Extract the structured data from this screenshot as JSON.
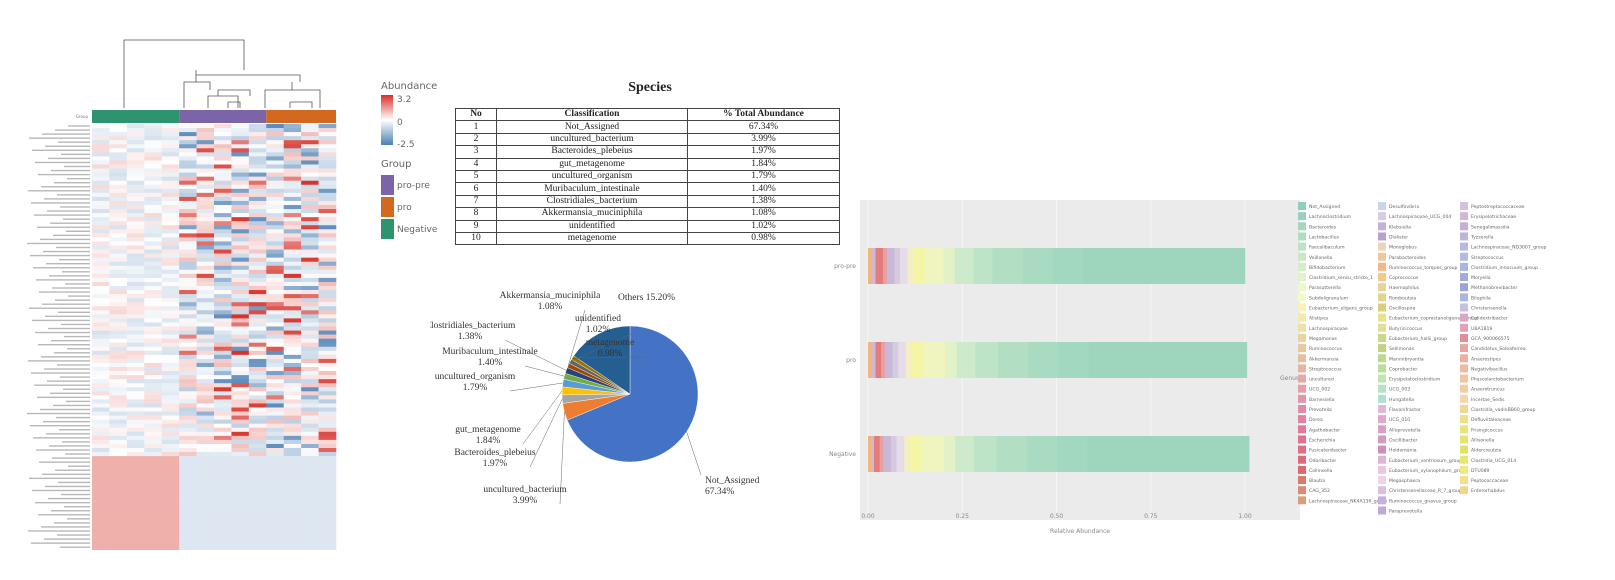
{
  "chart_data": [
    {
      "type": "heatmap",
      "legend": {
        "abundance_title": "Abundance",
        "ticks": [
          "3.2",
          "0",
          "-2.5"
        ],
        "group_title": "Group",
        "groups": [
          {
            "name": "pro-pre",
            "color": "#7b64a8"
          },
          {
            "name": "pro",
            "color": "#d2691e"
          },
          {
            "name": "Negative",
            "color": "#2e9470"
          }
        ]
      },
      "group_row_label": "Group",
      "colors": {
        "high": "#d73027",
        "mid": "#ffffff",
        "low": "#4a7fb5"
      }
    },
    {
      "type": "table",
      "title": "Species",
      "columns": [
        "No",
        "Classification",
        "% Total Abundance"
      ],
      "rows": [
        [
          "1",
          "Not_Assigned",
          "67.34%"
        ],
        [
          "2",
          "uncultured_bacterium",
          "3.99%"
        ],
        [
          "3",
          "Bacteroides_plebeius",
          "1.97%"
        ],
        [
          "4",
          "gut_metagenome",
          "1.84%"
        ],
        [
          "5",
          "uncultured_organism",
          "1.79%"
        ],
        [
          "6",
          "Muribaculum_intestinale",
          "1.40%"
        ],
        [
          "7",
          "Clostridiales_bacterium",
          "1.38%"
        ],
        [
          "8",
          "Akkermansia_muciniphila",
          "1.08%"
        ],
        [
          "9",
          "unidentified",
          "1.02%"
        ],
        [
          "10",
          "metagenome",
          "0.98%"
        ]
      ]
    },
    {
      "type": "pie",
      "slices": [
        {
          "label": "Not_Assigned",
          "value": 67.34,
          "color": "#4472c4"
        },
        {
          "label": "uncultured_bacterium",
          "value": 3.99,
          "color": "#ed7d31"
        },
        {
          "label": "Bacteroides_plebeius",
          "value": 1.97,
          "color": "#a5a5a5"
        },
        {
          "label": "gut_metagenome",
          "value": 1.84,
          "color": "#ffc000"
        },
        {
          "label": "uncultured_organism",
          "value": 1.79,
          "color": "#5b9bd5"
        },
        {
          "label": "Muribaculum_intestinale",
          "value": 1.4,
          "color": "#70ad47"
        },
        {
          "label": "Clostridiales_bacterium",
          "value": 1.38,
          "color": "#264478"
        },
        {
          "label": "Akkermansia_muciniphila",
          "value": 1.08,
          "color": "#9e480e"
        },
        {
          "label": "unidentified",
          "value": 1.02,
          "color": "#636363"
        },
        {
          "label": "metagenome",
          "value": 0.98,
          "color": "#997300"
        },
        {
          "label": "Others",
          "value": 15.2,
          "color": "#255e91"
        }
      ],
      "label_texts": [
        {
          "name": "Not_Assigned",
          "pct": "67.34%"
        },
        {
          "name": "uncultured_bacterium",
          "pct": "3.99%"
        },
        {
          "name": "Bacteroides_plebeius",
          "pct": "1.97%"
        },
        {
          "name": "gut_metagenome",
          "pct": "1.84%"
        },
        {
          "name": "uncultured_organism",
          "pct": "1.79%"
        },
        {
          "name": "Muribaculum_intestinale",
          "pct": "1.40%"
        },
        {
          "name": "Clostridiales_bacterium",
          "pct": "1.38%"
        },
        {
          "name": "Akkermansia_muciniphila",
          "pct": "1.08%"
        },
        {
          "name": "unidentified",
          "pct": "1.02%"
        },
        {
          "name": "metagenome",
          "pct": "0.98%"
        },
        {
          "name": "Others 15.20%",
          "pct": ""
        }
      ]
    },
    {
      "type": "bar",
      "orientation": "horizontal-stacked",
      "categories": [
        "pro-pre",
        "pro",
        "Negative"
      ],
      "xlabel": "Relative Abundance",
      "ylabel": "",
      "xlim": [
        0,
        1
      ],
      "x_ticks": [
        "0.00",
        "0.25",
        "0.50",
        "0.75",
        "1.00"
      ],
      "legend_title": "Genus",
      "legend_placement": "right",
      "genus_columns": [
        [
          "Not_Assigned",
          "Lachnoclostridium",
          "Bacteroides",
          "Lactobacillus",
          "Faecalibaculum",
          "Veillonella",
          "Bifidobacterium",
          "Clostridium_sensu_stricto_1",
          "Parasutterella",
          "Subdoligranulum",
          "Eubacterium_eligens_group",
          "Alistipes",
          "Lachnospiraceae",
          "Megamonas",
          "Ruminococcus",
          "Akkermansia",
          "Streptococcus",
          "uncultured",
          "UCG_002",
          "Barnesiella",
          "Prevotella",
          "Dorea",
          "Agathobacter",
          "Escherichia",
          "Fusicatenibacter",
          "Odoribacter",
          "Collinsella",
          "Blautia",
          "CAG_352",
          "Lachnospiraceae_NK4A136_group"
        ],
        [
          "Desulfovibrio",
          "Lachnospiraceae_UCG_004",
          "Klebsiella",
          "Dialister",
          "Monoglobus",
          "Parabacteroides",
          "Ruminococcus_torques_group",
          "Coprococcus",
          "Haemophilus",
          "Romboutsia",
          "Oscillospira",
          "Eubacterium_coprostanoligenes_group",
          "Butyricicoccus",
          "Eubacterium_hallii_group",
          "Sellimonas",
          "Marvinbryantia",
          "Coprobacter",
          "Erysipelatoclostridium",
          "UCG_003",
          "Hungatella",
          "Flavonifractor",
          "UCG_010",
          "Alloprevotella",
          "Oscillibacter",
          "Holdemania",
          "Eubacterium_ventriosum_group",
          "Eubacterium_xylanophilum_group",
          "Megasphaera",
          "Christensenellaceae_R_7_group",
          "Ruminococcus_gnavus_group",
          "Paraprevotella"
        ],
        [
          "Peptostreptococcaceae",
          "Erysipelotrichaceae",
          "Senegalimassilia",
          "Tyzzerella",
          "Lachnospiraceae_ND3007_group",
          "Streptococcus",
          "Clostridium_innocuum_group",
          "Moryella",
          "Methanobrevibacter",
          "Bilophila",
          "Christensenella",
          "Colidextribacter",
          "UBA1819",
          "GCA_900066575",
          "Candidatus_Soleaferrea",
          "Anaerostipes",
          "Negativibacillus",
          "Phascolarctobacterium",
          "Anaerotruncus",
          "Incertae_Sedis",
          "Clostridia_vadinBB60_group",
          "Defluviitaleaceae",
          "Frisingicoccus",
          "Allisonella",
          "Aldercreutzia",
          "Clostridia_UCG_014",
          "DTU089",
          "Peptococcaceae",
          "Enterorhabdus"
        ]
      ],
      "genus_colors": [
        "#8fd1b6",
        "#9bd0bd",
        "#a6d6c0",
        "#b0dcc2",
        "#bde3c4",
        "#c8e8c6",
        "#d5eec8",
        "#e2f3c9",
        "#edf7c8",
        "#f5f9c3",
        "#f7f3b8",
        "#f4e9ad",
        "#f0dfa6",
        "#ebd3a1",
        "#e8c89f",
        "#e6bfa0",
        "#e5b5a3",
        "#e4aaa6",
        "#e49fa9",
        "#e394aa",
        "#e28aa8",
        "#e580a2",
        "#e5779a",
        "#e47090",
        "#e26c86",
        "#e0697c",
        "#de6772",
        "#dd7a6e",
        "#d98c73",
        "#d7a07b"
      ],
      "series_colors": [
        "#f3b77e",
        "#cfb4d9",
        "#e57c7c",
        "#c7b8d6",
        "#f4f4a8",
        "#edf2c2",
        "#c6e8cf",
        "#a8dcc3"
      ],
      "rows": [
        {
          "name": "pro-pre",
          "segments": [
            0.01,
            0.01,
            0.02,
            0.01,
            0.02,
            0.015,
            0.02,
            0.015,
            0.03,
            0.05,
            0.03,
            0.05,
            0.05,
            0.08,
            0.08,
            0.08,
            0.43
          ]
        },
        {
          "name": "pro",
          "segments": [
            0.01,
            0.01,
            0.015,
            0.01,
            0.02,
            0.015,
            0.02,
            0.015,
            0.03,
            0.06,
            0.03,
            0.05,
            0.06,
            0.08,
            0.08,
            0.08,
            0.42
          ]
        },
        {
          "name": "Negative",
          "segments": [
            0.008,
            0.008,
            0.015,
            0.01,
            0.02,
            0.015,
            0.02,
            0.015,
            0.03,
            0.06,
            0.03,
            0.05,
            0.06,
            0.08,
            0.08,
            0.08,
            0.43
          ]
        }
      ]
    }
  ]
}
